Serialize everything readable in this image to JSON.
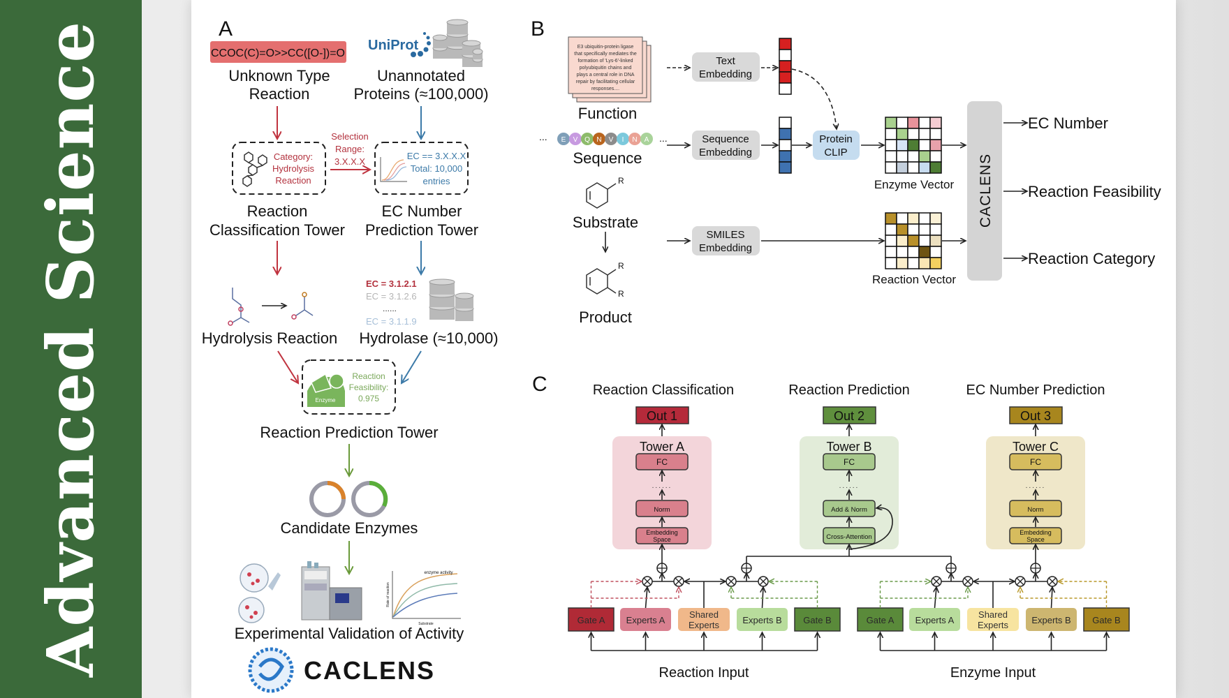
{
  "banner": {
    "title": "Advanced Science",
    "color": "#3b6a3a"
  },
  "panel_a": {
    "label": "A",
    "smiles": "CCOC(C)=O>>CC([O-])=O",
    "uniprot": "UniProt",
    "unknown_reaction": [
      "Unknown Type",
      "Reaction"
    ],
    "unannotated": [
      "Unannotated",
      "Proteins (≈100,000)"
    ],
    "selection": [
      "Selection",
      "Range:",
      "3.X.X.X"
    ],
    "category": [
      "Category:",
      "Hydrolysis",
      "Reaction"
    ],
    "ec_filter": [
      "EC == 3.X.X.X",
      "Total: 10,000",
      "entries"
    ],
    "classification_tower": [
      "Reaction",
      "Classification Tower"
    ],
    "ec_tower": [
      "EC Number",
      "Prediction Tower"
    ],
    "ec_list": [
      "EC = 3.1.2.1",
      "EC = 3.1.2.6",
      "......",
      "EC = 3.1.1.9"
    ],
    "hydrolysis": "Hydrolysis Reaction",
    "hydrolase": "Hydrolase (≈10,000)",
    "enzyme_label": "Enzyme",
    "feasibility": [
      "Reaction",
      "Feasibility:",
      "0.975"
    ],
    "prediction_tower": "Reaction Prediction Tower",
    "candidates": "Candidate Enzymes",
    "plot_title": "enzyme activity",
    "plot_x": "Substrate",
    "plot_y": "Rate of reaction",
    "validation": "Experimental Validation of Activity",
    "logo": "CACLENS",
    "colors": {
      "red": "#c0333f",
      "blue": "#3c7aa8",
      "green": "#6a9a3a",
      "smiles_bg": "#e46f6f"
    }
  },
  "panel_b": {
    "label": "B",
    "function_text": [
      "E3 ubiquitin-protein ligase",
      "that specifically mediates the",
      "formation of 'Lys-6'-linked",
      "polyubiquitin chains and",
      "plays a central role in DNA",
      "repair by facilitating cellular",
      "responses...."
    ],
    "function": "Function",
    "sequence": "Sequence",
    "sequence_residues": [
      {
        "letter": "E",
        "color": "#7f9fb8"
      },
      {
        "letter": "V",
        "color": "#c79ae0"
      },
      {
        "letter": "Q",
        "color": "#8dbb6a"
      },
      {
        "letter": "N",
        "color": "#b9651e"
      },
      {
        "letter": "V",
        "color": "#8c8c8c"
      },
      {
        "letter": "I",
        "color": "#7cc9dc"
      },
      {
        "letter": "N",
        "color": "#eaa295"
      },
      {
        "letter": "A",
        "color": "#a9d39a"
      }
    ],
    "ellipsis": "...",
    "substrate": "Substrate",
    "product": "Product",
    "r_group": "R",
    "text_embedding": [
      "Text",
      "Embedding"
    ],
    "sequence_embedding": [
      "Sequence",
      "Embedding"
    ],
    "smiles_embedding": [
      "SMILES",
      "Embedding"
    ],
    "protein_clip": [
      "Protein",
      "CLIP"
    ],
    "text_vector": [
      "#d62020",
      "#ffffff",
      "#d62020",
      "#d62020",
      "#ffffff"
    ],
    "seq_vector": [
      "#ffffff",
      "#3f72b0",
      "#ffffff",
      "#3f72b0",
      "#3f72b0"
    ],
    "enzyme_vector_label": "Enzyme Vector",
    "enzyme_grid": [
      [
        "#a9d18e",
        "#fff",
        "#e8939b",
        "#fff",
        "#f4ccd2"
      ],
      [
        "#fff",
        "#a9d18e",
        "#fff",
        "#fff",
        "#fff"
      ],
      [
        "#fff",
        "#d6e4f5",
        "#4e7d34",
        "#fff",
        "#e8a1ab"
      ],
      [
        "#fff",
        "#fff",
        "#fff",
        "#a9d18e",
        "#fff"
      ],
      [
        "#fff",
        "#c4cfdc",
        "#fff",
        "#c8dcf0",
        "#4e7d34"
      ]
    ],
    "reaction_vector_label": "Reaction Vector",
    "reaction_grid": [
      [
        "#b8902a",
        "#fff",
        "#fbeecb",
        "#fff",
        "#fbf1d6"
      ],
      [
        "#fff",
        "#b8902a",
        "#fff",
        "#fff",
        "#fff"
      ],
      [
        "#fff",
        "#fbeecb",
        "#b8902a",
        "#fff",
        "#ece0c0"
      ],
      [
        "#fff",
        "#fff",
        "#fff",
        "#6e5412",
        "#fff"
      ],
      [
        "#fff",
        "#fbeecb",
        "#fff",
        "#fae6b4",
        "#f4d160"
      ]
    ],
    "caclens": "CACLENS",
    "outputs": [
      "EC Number",
      "Reaction Feasibility",
      "Reaction Category"
    ]
  },
  "panel_c": {
    "label": "C",
    "towers": [
      {
        "heading": "Reaction Classification",
        "out": "Out 1",
        "out_color": "#b52a3a",
        "title": "Tower A",
        "bg": "#f3d5da",
        "box": "#d9808c",
        "layers": [
          "FC",
          "......",
          "Norm",
          "Embedding Space"
        ]
      },
      {
        "heading": "Reaction Prediction",
        "out": "Out 2",
        "out_color": "#5f8f3d",
        "title": "Tower B",
        "bg": "#e2ecd9",
        "box": "#a8c98d",
        "layers": [
          "FC",
          "......",
          "Add & Norm",
          "Cross-Attention"
        ]
      },
      {
        "heading": "EC Number Prediction",
        "out": "Out 3",
        "out_color": "#a8861e",
        "title": "Tower C",
        "bg": "#efe7c9",
        "box": "#d6bc5e",
        "layers": [
          "FC",
          "......",
          "Norm",
          "Embedding Space"
        ]
      }
    ],
    "groups": [
      {
        "input": "Reaction Input",
        "gate_a_dash": "#c0505f",
        "gate_b_dash": "#6a9a4a",
        "boxes": [
          {
            "label": "Gate A",
            "color": "#b02a36"
          },
          {
            "label": "Experts A",
            "color": "#d98090"
          },
          {
            "label": "Shared Experts",
            "color": "#f0b88a"
          },
          {
            "label": "Experts B",
            "color": "#b8dc9c"
          },
          {
            "label": "Gate B",
            "color": "#5a8a3a"
          }
        ]
      },
      {
        "input": "Enzyme Input",
        "gate_a_dash": "#6a9a4a",
        "gate_b_dash": "#b8982a",
        "boxes": [
          {
            "label": "Gate A",
            "color": "#5a8a3a"
          },
          {
            "label": "Experts A",
            "color": "#b8dc9c"
          },
          {
            "label": "Shared Experts",
            "color": "#f7e4a0"
          },
          {
            "label": "Experts B",
            "color": "#cdb670"
          },
          {
            "label": "Gate B",
            "color": "#a8861e"
          }
        ]
      }
    ]
  }
}
